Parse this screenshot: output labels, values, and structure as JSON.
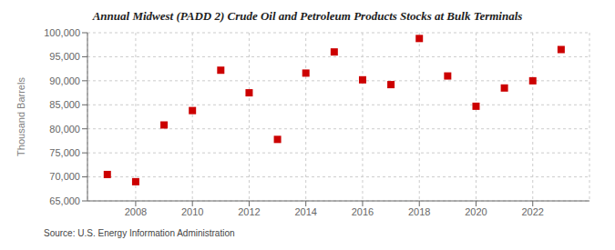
{
  "chart_data": {
    "type": "scatter",
    "title": "Annual Midwest (PADD 2) Crude Oil and Petroleum Products Stocks at Bulk Terminals",
    "y_label": "Thousand Barrels",
    "annotations": [
      "Source: U.S. Energy Information Administration"
    ],
    "x": [
      2007,
      2008,
      2009,
      2010,
      2011,
      2012,
      2013,
      2014,
      2015,
      2016,
      2017,
      2018,
      2019,
      2020,
      2021,
      2022,
      2023
    ],
    "values": [
      70500,
      69000,
      80800,
      83800,
      92200,
      87500,
      77800,
      91600,
      96000,
      90200,
      89200,
      98800,
      91000,
      84700,
      88500,
      90000,
      96500
    ],
    "color": "#cc0000",
    "marker": "square",
    "xlim": [
      2006.3,
      2024.0
    ],
    "xticks": [
      2008,
      2010,
      2012,
      2014,
      2016,
      2018,
      2020,
      2022
    ],
    "ylim": [
      65000,
      100000
    ],
    "yticks": [
      {
        "value": 65000,
        "label": "65,000"
      },
      {
        "value": 70000,
        "label": "70,000"
      },
      {
        "value": 75000,
        "label": "75,000"
      },
      {
        "value": 80000,
        "label": "80,000"
      },
      {
        "value": 85000,
        "label": "85,000"
      },
      {
        "value": 90000,
        "label": "90,000"
      },
      {
        "value": 95000,
        "label": "95,000"
      },
      {
        "value": 100000,
        "label": "100,000"
      }
    ],
    "grid": true
  }
}
